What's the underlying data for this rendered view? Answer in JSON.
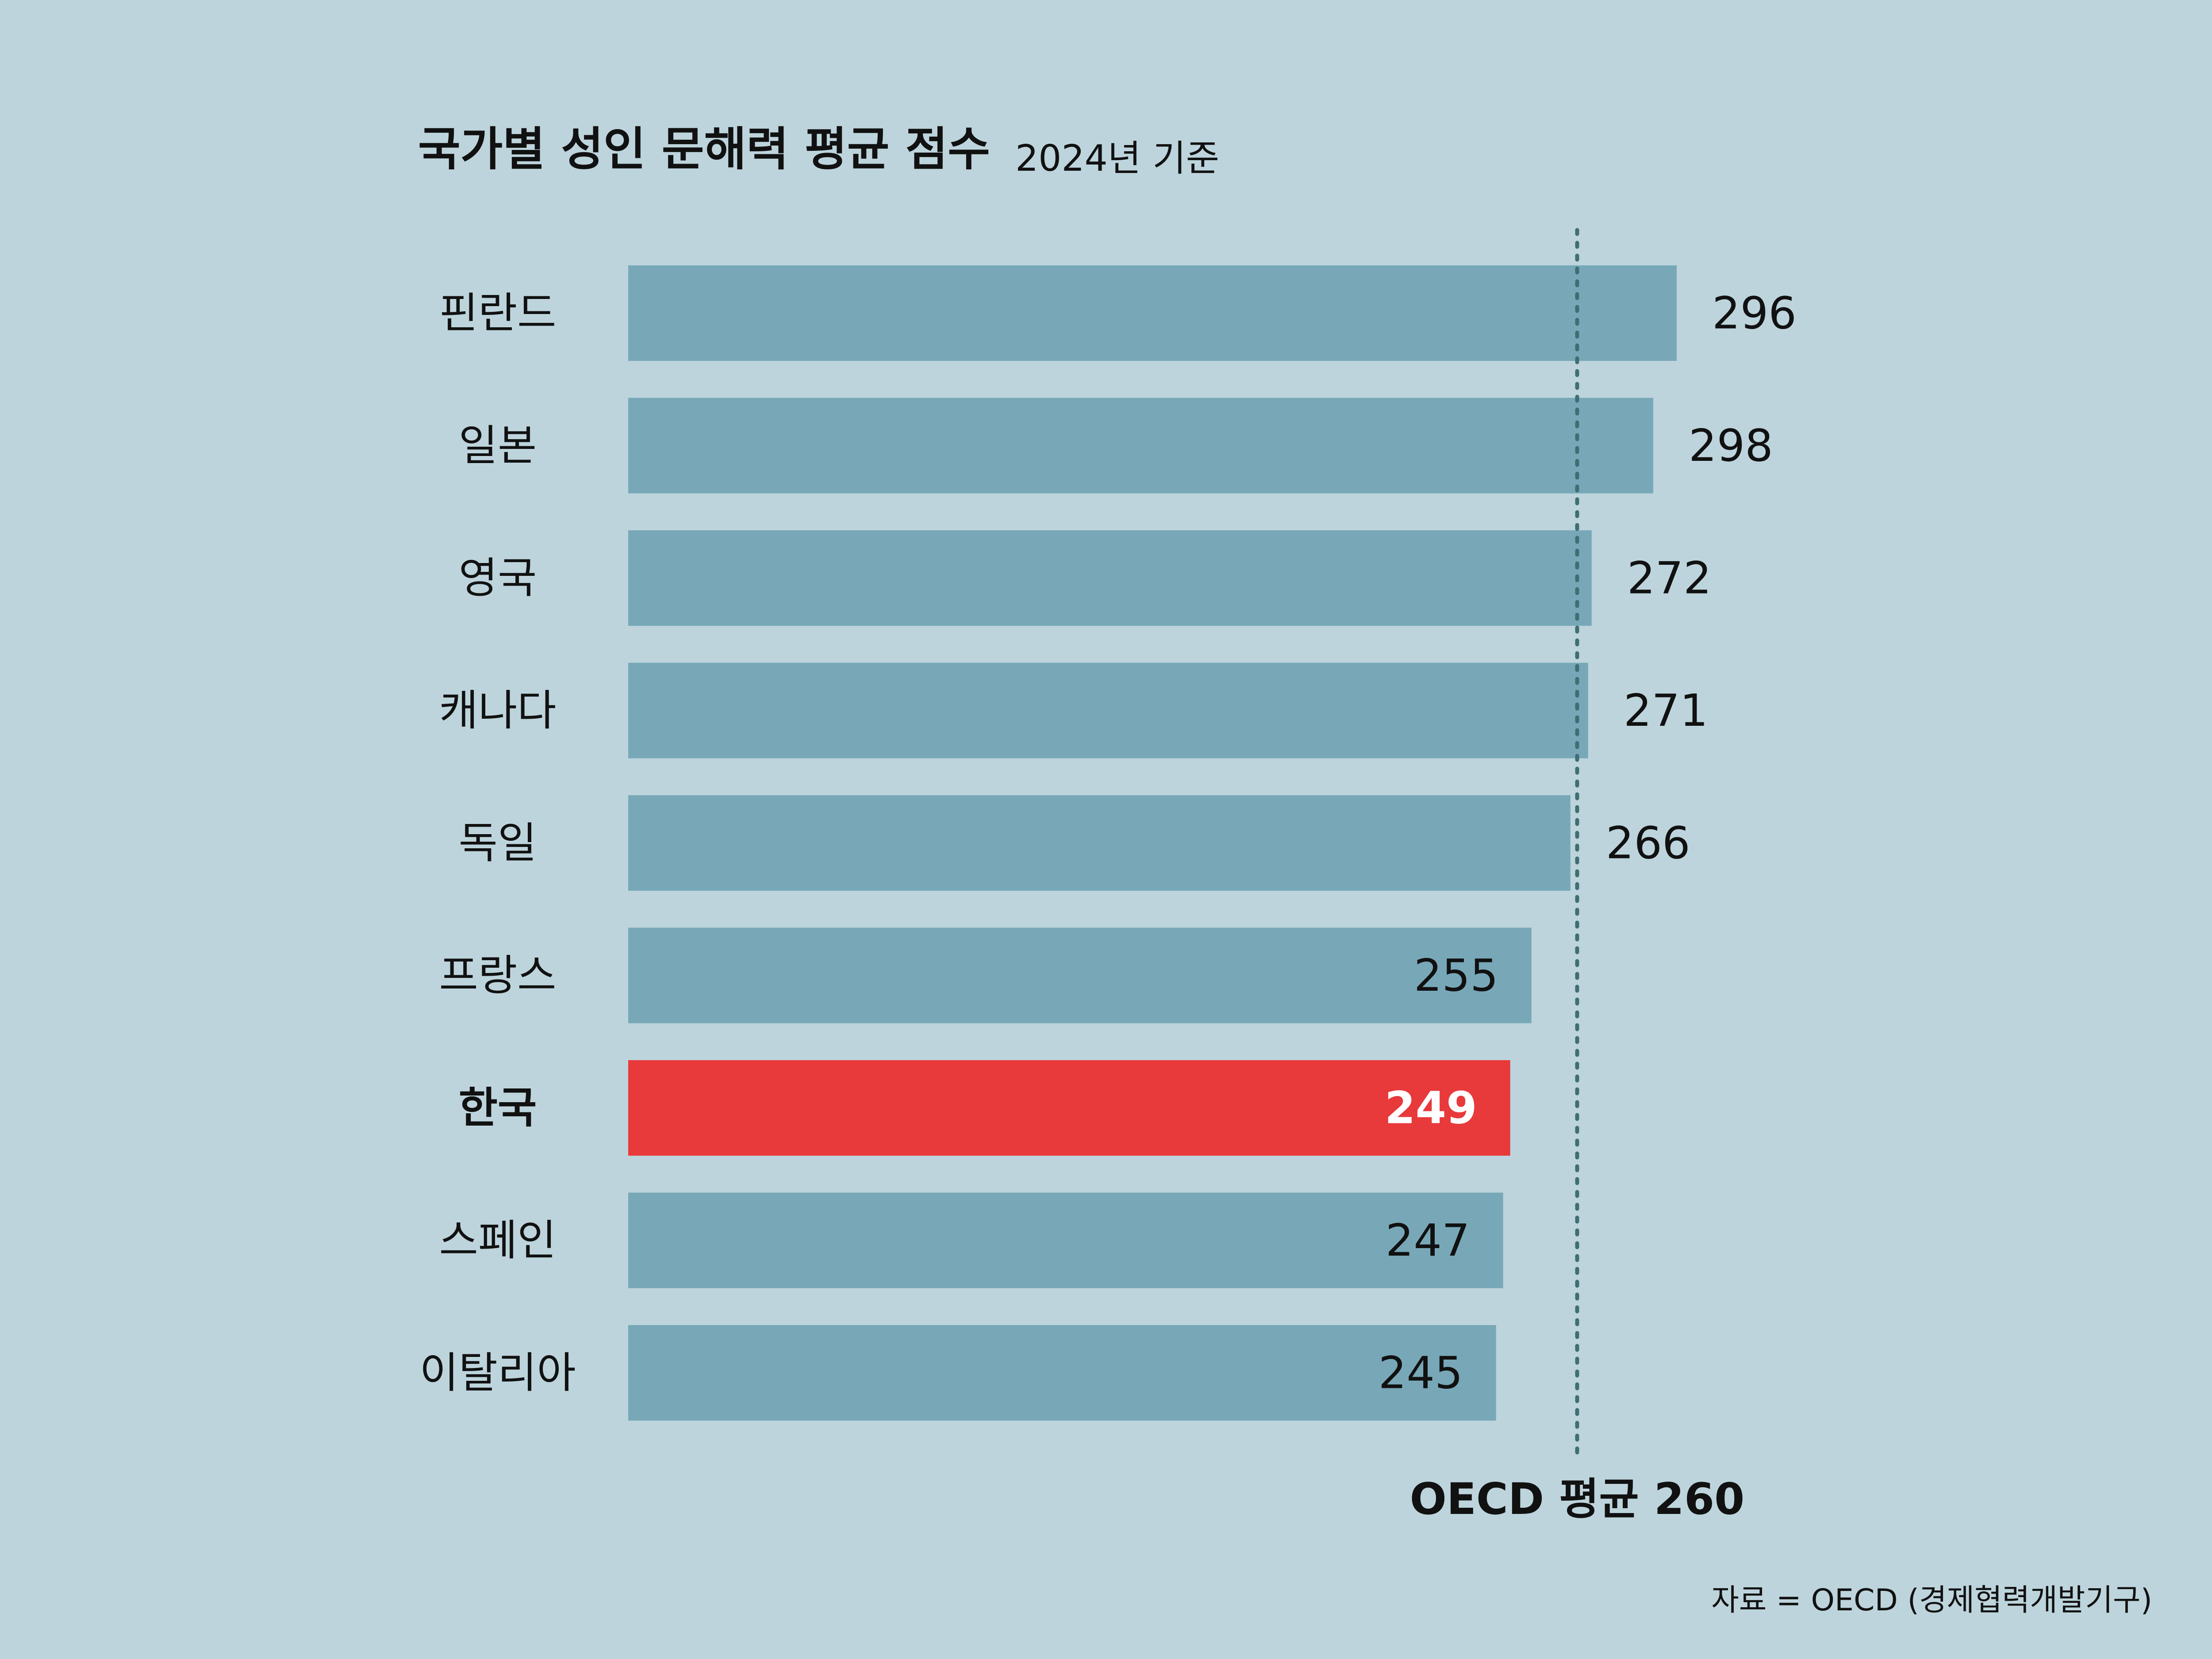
{
  "header": {
    "title": "국가별 성인 문해력 평균 점수",
    "subtitle": "2024년 기준"
  },
  "footer": {
    "source": "자료 = OECD (경제협력개발기구)"
  },
  "colors": {
    "background": "#bdd4dc",
    "bar": "#78a8b8",
    "highlight": "#e8393b",
    "reference_line": "#3f6e73",
    "text": "#111111"
  },
  "chart_data": {
    "type": "bar",
    "orientation": "horizontal",
    "categories": [
      "핀란드",
      "일본",
      "영국",
      "캐나다",
      "독일",
      "프랑스",
      "한국",
      "스페인",
      "이탈리아"
    ],
    "values": [
      296,
      298,
      272,
      271,
      266,
      255,
      249,
      247,
      245
    ],
    "value_labels": [
      "296",
      "298",
      "272",
      "271",
      "266",
      "255",
      "249",
      "247",
      "245"
    ],
    "highlight": "한국",
    "reference": {
      "label": "OECD 평균 260",
      "value": 260,
      "style": "dotted"
    },
    "xlim": [
      0,
      298
    ],
    "grid": false,
    "legend": "none"
  }
}
